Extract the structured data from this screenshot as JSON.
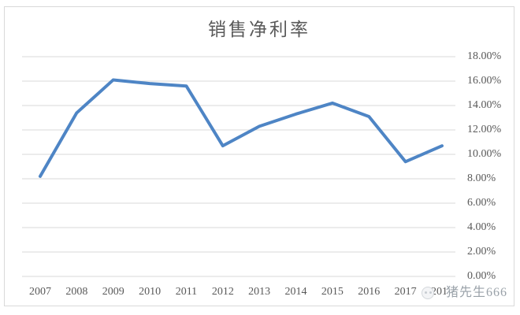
{
  "chart_data": {
    "type": "line",
    "title": "销售净利率",
    "categories": [
      "2007",
      "2008",
      "2009",
      "2010",
      "2011",
      "2012",
      "2013",
      "2014",
      "2015",
      "2016",
      "2017",
      "2018"
    ],
    "series": [
      {
        "name": "销售净利率",
        "values": [
          8.2,
          13.4,
          16.1,
          15.8,
          15.6,
          10.7,
          12.3,
          13.3,
          14.2,
          13.1,
          9.4,
          10.7
        ],
        "color": "#4e85c5"
      }
    ],
    "xlabel": "",
    "ylabel": "",
    "ylim": [
      0,
      18
    ],
    "ytick_step": 2,
    "ytick_labels": [
      "18.00%",
      "16.00%",
      "14.00%",
      "12.00%",
      "10.00%",
      "8.00%",
      "6.00%",
      "4.00%",
      "2.00%",
      "0.00%"
    ],
    "yaxis_side": "right",
    "grid": true,
    "legend_position": "none"
  },
  "colors": {
    "line": "#4e85c5",
    "gridline": "#d9d9d9",
    "chart_border": "#d9d9d9",
    "label_text": "#595959",
    "title_text": "#595959",
    "watermark_text": "#99a1a8",
    "background": "#ffffff"
  },
  "watermark": {
    "text": "猪先生666",
    "icon": "avatar-circle-icon"
  }
}
